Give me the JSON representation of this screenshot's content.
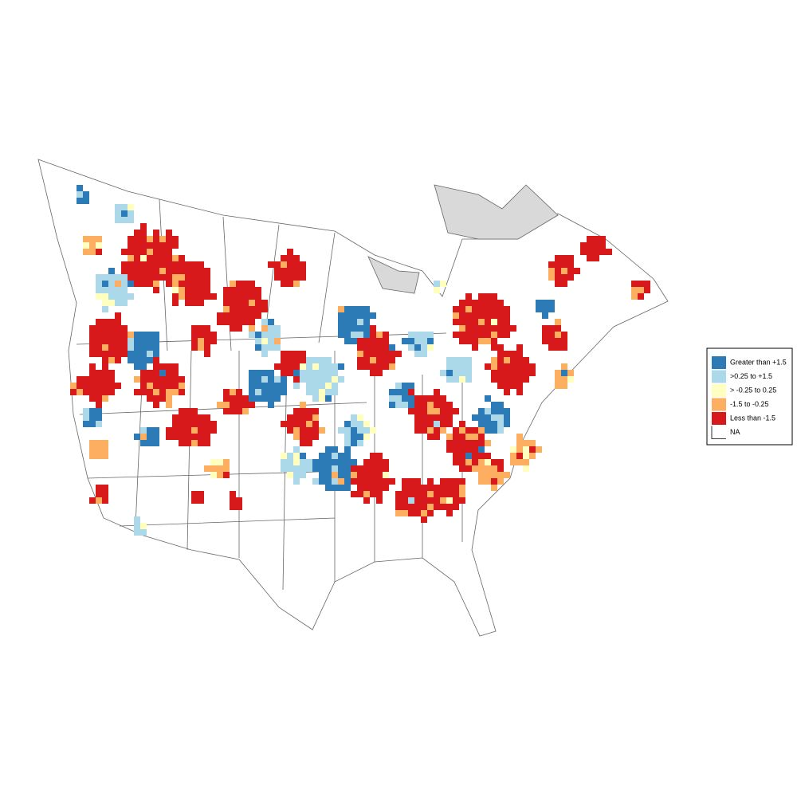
{
  "legend": {
    "items": [
      {
        "label": "Greater than +1.5",
        "color": "#2c7bb6"
      },
      {
        "label": ">0.25 to +1.5",
        "color": "#abd9e9"
      },
      {
        "label": "> -0.25 to 0.25",
        "color": "#ffffbf"
      },
      {
        "label": "-1.5 to -0.25",
        "color": "#fdae61"
      },
      {
        "label": "Less than -1.5",
        "color": "#d7191c"
      },
      {
        "label": "NA",
        "color": "#ffffff"
      }
    ]
  }
}
